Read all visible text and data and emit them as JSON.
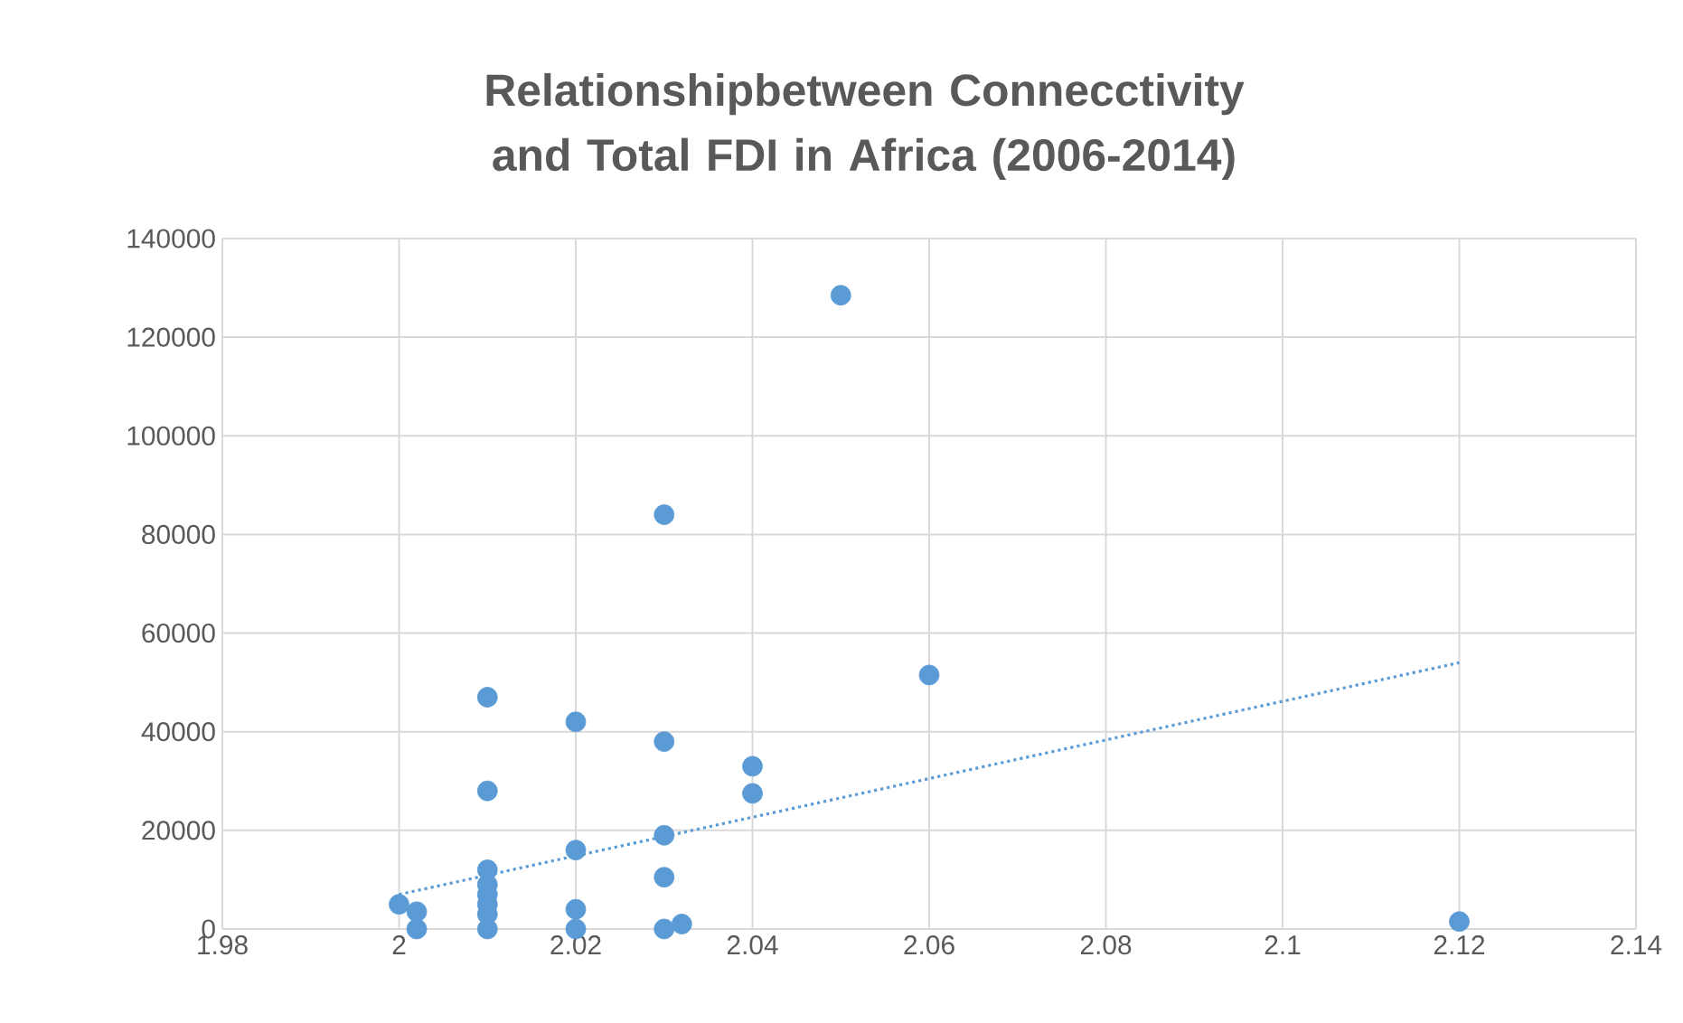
{
  "chart_data": {
    "type": "scatter",
    "title": "Relationshipbetween Connecctivity and Total FDI in **Africa** (2006-2014)",
    "series": [
      {
        "color": "#5b9bd5",
        "marker": "circle",
        "x": [
          2,
          2.002,
          2.002,
          2.01,
          2.01,
          2.01,
          2.01,
          2.01,
          2.01,
          2.01,
          2.01,
          2.02,
          2.02,
          2.02,
          2.02,
          2.03,
          2.03,
          2.03,
          2.03,
          2.03,
          2.032,
          2.04,
          2.04,
          2.05,
          2.06,
          2.12
        ],
        "values": [
          5000,
          3500,
          0,
          47000,
          28000,
          12000,
          9000,
          7000,
          5000,
          3000,
          0,
          42000,
          16000,
          4000,
          0,
          84000,
          38000,
          19000,
          10500,
          0,
          1000,
          33000,
          27500,
          128500,
          51500,
          1500
        ]
      },
      {
        "type": "line",
        "color": "#5b9bd5",
        "line_style": "dotted",
        "marker": "none",
        "x": [
          2,
          2.12
        ],
        "values": [
          7000,
          54000
        ]
      }
    ],
    "xlim": [
      1.98,
      2.14
    ],
    "xticks": [
      1.98,
      2,
      2.02,
      2.04,
      2.06,
      2.08,
      2.1,
      2.12,
      2.14
    ],
    "ylim": [
      0,
      140000
    ],
    "yticks": [
      0,
      20000,
      40000,
      60000,
      80000,
      100000,
      120000,
      140000
    ],
    "grid": true
  }
}
